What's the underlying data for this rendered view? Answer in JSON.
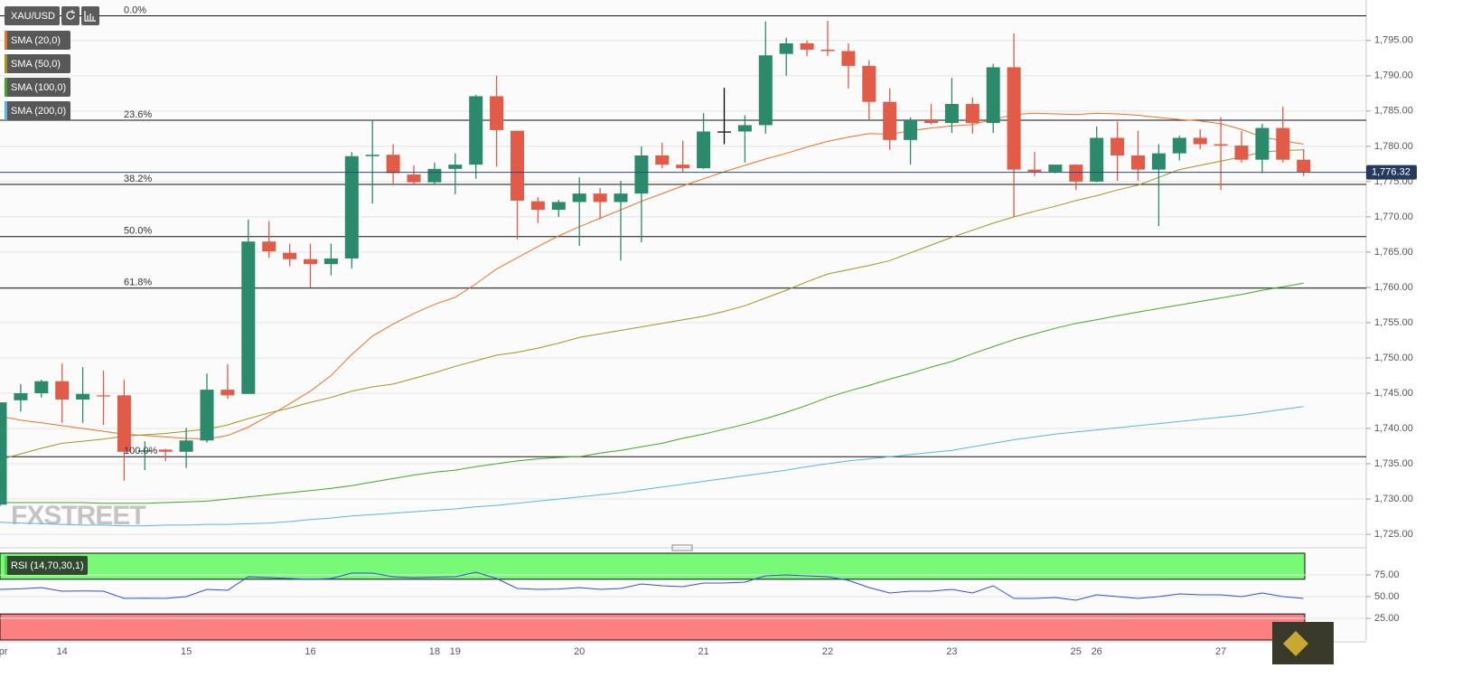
{
  "chart_data": [
    {
      "type": "candlestick",
      "symbol": "XAU/USD",
      "watermark": "FXSTREET",
      "up_color": "#2b8a6c",
      "down_color": "#e15b47",
      "flat_color": "#000000",
      "categories": [
        "Apr",
        null,
        null,
        "14",
        null,
        null,
        null,
        null,
        null,
        "15",
        null,
        null,
        null,
        null,
        null,
        "16",
        null,
        null,
        null,
        null,
        null,
        "18",
        "19",
        null,
        null,
        null,
        null,
        null,
        "20",
        null,
        null,
        null,
        null,
        null,
        "21",
        null,
        null,
        null,
        null,
        null,
        "22",
        null,
        null,
        null,
        null,
        null,
        "23",
        null,
        null,
        null,
        null,
        null,
        "25",
        "26",
        null,
        null,
        null,
        null,
        null,
        "27",
        null,
        null,
        null,
        null
      ],
      "open": [
        1729.2,
        1744.0,
        1745.0,
        1746.7,
        1744.1,
        1744.7,
        1744.7,
        1736.7,
        1737.0,
        1736.7,
        1738.3,
        1745.5,
        1744.9,
        1766.5,
        1764.9,
        1764.0,
        1763.3,
        1764.1,
        1778.6,
        1778.8,
        1776.0,
        1774.9,
        1776.8,
        1777.4,
        1787.1,
        1782.2,
        1772.2,
        1771.0,
        1772.1,
        1773.3,
        1772.1,
        1773.3,
        1778.7,
        1777.4,
        1776.9,
        1782.1,
        1782.1,
        1783.0,
        1793.1,
        1794.6,
        1793.7,
        1793.5,
        1791.4,
        1786.3,
        1780.9,
        1783.7,
        1783.3,
        1786.0,
        1783.3,
        1791.2,
        1776.7,
        1776.4,
        1777.4,
        1775.0,
        1781.2,
        1778.7,
        1776.7,
        1779.0,
        1781.2,
        1780.3,
        1780.1,
        1778.1,
        1782.6,
        1778.1
      ],
      "high": [
        1743.7,
        1746.3,
        1746.9,
        1749.2,
        1748.7,
        1748.2,
        1746.9,
        1738.2,
        1737.1,
        1740.1,
        1747.8,
        1749.1,
        1769.6,
        1769.4,
        1766.2,
        1766.2,
        1766.2,
        1779.2,
        1783.7,
        1780.3,
        1777.3,
        1777.7,
        1779.0,
        1787.3,
        1790.0,
        1782.2,
        1772.8,
        1772.4,
        1775.6,
        1774.1,
        1775.1,
        1780.0,
        1780.5,
        1780.8,
        1784.7,
        1788.3,
        1784.4,
        1797.7,
        1795.4,
        1795.0,
        1797.8,
        1794.6,
        1792.2,
        1788.2,
        1784.1,
        1786.0,
        1789.7,
        1786.9,
        1791.7,
        1796.0,
        1779.2,
        1777.4,
        1777.4,
        1782.8,
        1783.5,
        1782.2,
        1780.3,
        1781.5,
        1782.4,
        1784.1,
        1782.2,
        1783.2,
        1785.6,
        1779.6
      ],
      "low": [
        1729.0,
        1742.4,
        1744.4,
        1740.8,
        1740.8,
        1740.5,
        1732.6,
        1734.1,
        1735.4,
        1734.4,
        1738.0,
        1744.2,
        1744.9,
        1764.2,
        1763.0,
        1760.0,
        1761.7,
        1762.7,
        1771.9,
        1774.6,
        1774.6,
        1774.5,
        1773.2,
        1775.4,
        1777.1,
        1766.8,
        1769.1,
        1770.0,
        1765.9,
        1769.7,
        1763.8,
        1766.4,
        1776.9,
        1776.4,
        1776.8,
        1780.3,
        1777.7,
        1781.8,
        1790.0,
        1792.8,
        1792.8,
        1788.2,
        1783.8,
        1779.5,
        1777.4,
        1783.1,
        1781.9,
        1781.8,
        1781.9,
        1770.0,
        1775.8,
        1776.2,
        1773.8,
        1774.9,
        1775.1,
        1775.1,
        1768.7,
        1778.0,
        1779.6,
        1773.8,
        1777.7,
        1776.2,
        1777.7,
        1775.8
      ],
      "close": [
        1743.7,
        1745.0,
        1746.7,
        1744.1,
        1744.9,
        1744.6,
        1736.7,
        1736.9,
        1736.7,
        1738.3,
        1745.5,
        1744.7,
        1766.5,
        1765.1,
        1764.0,
        1763.3,
        1764.1,
        1778.6,
        1778.8,
        1776.2,
        1774.9,
        1776.8,
        1777.4,
        1787.1,
        1782.3,
        1772.3,
        1771.0,
        1772.1,
        1773.3,
        1772.1,
        1773.3,
        1778.7,
        1777.4,
        1776.9,
        1782.1,
        1782.1,
        1783.0,
        1792.9,
        1794.6,
        1793.7,
        1793.5,
        1791.4,
        1786.3,
        1780.9,
        1783.7,
        1783.3,
        1786.0,
        1783.3,
        1791.2,
        1776.7,
        1776.4,
        1777.4,
        1775.0,
        1781.2,
        1778.7,
        1776.7,
        1779.0,
        1781.2,
        1780.3,
        1780.1,
        1778.1,
        1782.6,
        1778.1,
        1776.4
      ],
      "series": [
        {
          "name": "SMA (20,0)",
          "color": "#e8742a",
          "values": [
            1741.7,
            1741.2,
            1740.8,
            1740.4,
            1740.0,
            1739.6,
            1739.2,
            1739.0,
            1738.8,
            1738.6,
            1738.5,
            1739.0,
            1740.2,
            1741.8,
            1743.5,
            1745.3,
            1747.5,
            1750.5,
            1753.1,
            1754.8,
            1756.3,
            1757.6,
            1758.6,
            1760.5,
            1762.6,
            1764.2,
            1765.8,
            1767.3,
            1768.6,
            1769.8,
            1771.0,
            1772.2,
            1773.3,
            1774.4,
            1775.4,
            1776.4,
            1777.3,
            1778.2,
            1779.0,
            1779.9,
            1780.7,
            1781.3,
            1781.8,
            1781.7,
            1782.2,
            1782.6,
            1782.9,
            1783.1,
            1783.8,
            1784.5,
            1784.7,
            1784.6,
            1784.5,
            1784.7,
            1784.6,
            1784.4,
            1784.1,
            1783.8,
            1783.6,
            1783.2,
            1782.4,
            1781.3,
            1780.8,
            1780.3
          ]
        },
        {
          "name": "SMA (50,0)",
          "color": "#a39423",
          "values": [
            1735.6,
            1736.4,
            1737.2,
            1737.9,
            1738.2,
            1738.5,
            1738.9,
            1739.1,
            1739.3,
            1739.6,
            1739.9,
            1740.5,
            1741.4,
            1742.2,
            1742.9,
            1743.7,
            1744.4,
            1745.3,
            1745.9,
            1746.3,
            1747.1,
            1747.9,
            1748.8,
            1749.6,
            1750.4,
            1750.8,
            1751.4,
            1752.1,
            1752.9,
            1753.4,
            1753.9,
            1754.4,
            1754.9,
            1755.4,
            1755.9,
            1756.6,
            1757.4,
            1758.5,
            1759.6,
            1760.8,
            1761.9,
            1762.5,
            1763.1,
            1763.8,
            1764.9,
            1766.0,
            1767.1,
            1768.1,
            1769.1,
            1770.0,
            1770.8,
            1771.5,
            1772.3,
            1773.0,
            1773.8,
            1774.5,
            1775.6,
            1776.7,
            1777.3,
            1777.9,
            1778.5,
            1779.2,
            1779.4,
            1779.5
          ]
        },
        {
          "name": "SMA (100,0)",
          "color": "#42a824",
          "values": [
            1729.5,
            1729.5,
            1729.5,
            1729.5,
            1729.5,
            1729.4,
            1729.4,
            1729.4,
            1729.5,
            1729.6,
            1729.7,
            1730.0,
            1730.3,
            1730.6,
            1730.9,
            1731.2,
            1731.5,
            1731.9,
            1732.4,
            1732.9,
            1733.4,
            1733.8,
            1734.1,
            1734.6,
            1735.0,
            1735.4,
            1735.7,
            1735.9,
            1736.0,
            1736.5,
            1736.9,
            1737.4,
            1737.9,
            1738.6,
            1739.2,
            1739.9,
            1740.6,
            1741.4,
            1742.3,
            1743.3,
            1744.4,
            1745.3,
            1746.1,
            1747.0,
            1747.8,
            1748.7,
            1749.5,
            1750.6,
            1751.6,
            1752.6,
            1753.4,
            1754.2,
            1754.9,
            1755.4,
            1756.0,
            1756.5,
            1757.0,
            1757.5,
            1758.0,
            1758.5,
            1759.0,
            1759.6,
            1760.1,
            1760.6
          ]
        },
        {
          "name": "SMA (200,0)",
          "color": "#5ab4ea",
          "values": [
            1726.7,
            1726.6,
            1726.5,
            1726.4,
            1726.3,
            1726.3,
            1726.2,
            1726.2,
            1726.3,
            1726.3,
            1726.4,
            1726.4,
            1726.5,
            1726.6,
            1726.8,
            1727.1,
            1727.3,
            1727.6,
            1727.8,
            1728.0,
            1728.2,
            1728.4,
            1728.6,
            1728.9,
            1729.1,
            1729.4,
            1729.7,
            1730.0,
            1730.3,
            1730.6,
            1730.9,
            1731.3,
            1731.7,
            1732.1,
            1732.5,
            1732.9,
            1733.3,
            1733.7,
            1734.1,
            1734.6,
            1735.0,
            1735.4,
            1735.7,
            1736.0,
            1736.3,
            1736.6,
            1736.9,
            1737.4,
            1737.9,
            1738.4,
            1738.8,
            1739.2,
            1739.5,
            1739.8,
            1740.1,
            1740.4,
            1740.7,
            1741.0,
            1741.3,
            1741.6,
            1741.9,
            1742.3,
            1742.7,
            1743.1
          ]
        }
      ],
      "levels": [
        {
          "label": "0.0%",
          "value": 1798.5
        },
        {
          "label": "23.6%",
          "value": 1783.7
        },
        {
          "label": "38.2%",
          "value": 1774.6
        },
        {
          "label": "50.0%",
          "value": 1767.2
        },
        {
          "label": "61.8%",
          "value": 1759.9
        },
        {
          "label": "100.0%",
          "value": 1736.0
        }
      ],
      "last_price": {
        "value": 1776.32,
        "label": "1,776.32"
      },
      "ylim": [
        1723.6,
        1800.1
      ],
      "yticks": [
        {
          "value": 1725,
          "label": "1,725.00"
        },
        {
          "value": 1730,
          "label": "1,730.00"
        },
        {
          "value": 1735,
          "label": "1,735.00"
        },
        {
          "value": 1740,
          "label": "1,740.00"
        },
        {
          "value": 1745,
          "label": "1,745.00"
        },
        {
          "value": 1750,
          "label": "1,750.00"
        },
        {
          "value": 1755,
          "label": "1,755.00"
        },
        {
          "value": 1760,
          "label": "1,760.00"
        },
        {
          "value": 1765,
          "label": "1,765.00"
        },
        {
          "value": 1770,
          "label": "1,770.00"
        },
        {
          "value": 1775,
          "label": "1,775.00"
        },
        {
          "value": 1780,
          "label": "1,780.00"
        },
        {
          "value": 1785,
          "label": "1,785.00"
        },
        {
          "value": 1790,
          "label": "1,790.00"
        },
        {
          "value": 1795,
          "label": "1,795.00"
        }
      ],
      "grid": true
    },
    {
      "type": "line",
      "series": [
        {
          "name": "RSI (14,70,30,1)",
          "color": "#3150d8",
          "values": [
            58.3,
            59,
            60.4,
            56.3,
            56.5,
            56.3,
            47.9,
            48.2,
            47.9,
            50.0,
            58.3,
            57.3,
            72.9,
            71.9,
            70.8,
            69.8,
            70.8,
            77.1,
            77.1,
            72.9,
            71.9,
            72.5,
            72.9,
            78.1,
            70.8,
            59.4,
            58.3,
            58.8,
            60.4,
            58.3,
            59.4,
            64.6,
            62.5,
            61.5,
            65.6,
            65.6,
            66.7,
            74.0,
            75.0,
            74.0,
            72.9,
            68.8,
            60.4,
            54.2,
            56.3,
            56.3,
            58.3,
            54.2,
            62.5,
            47.9,
            47.9,
            49.0,
            45.8,
            52.1,
            50.0,
            47.9,
            50.0,
            53.1,
            52.1,
            52.1,
            50.0,
            54.2,
            50.0,
            47.9
          ]
        }
      ],
      "bands": [
        {
          "from": 70,
          "to": 100,
          "color": "#78fa78"
        },
        {
          "from": 0,
          "to": 30,
          "color": "#fc8080"
        }
      ],
      "ylim": [
        0,
        100
      ],
      "yticks": [
        {
          "value": 25,
          "label": "25.00"
        },
        {
          "value": 50,
          "label": "50.00"
        },
        {
          "value": 75,
          "label": "75.00"
        }
      ],
      "grid": true
    }
  ]
}
